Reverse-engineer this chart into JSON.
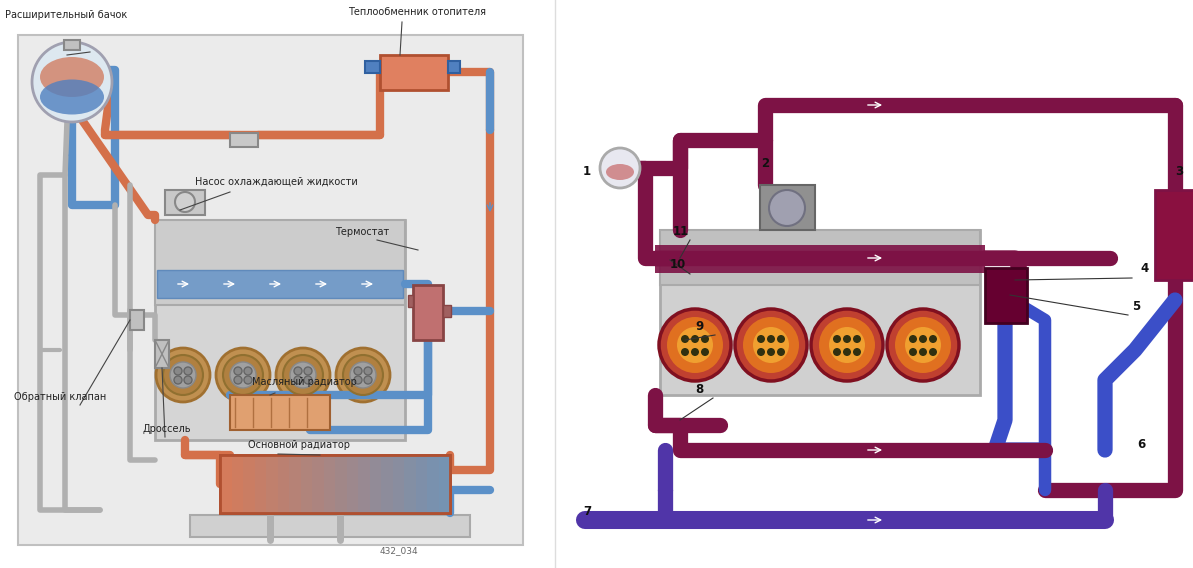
{
  "fig_width": 11.93,
  "fig_height": 5.68,
  "bg_color": "#ffffff",
  "left_labels": {
    "rasshiritelniy": "Расширительный бачок",
    "nasos": "Насос охлаждающей жидкости",
    "termostat": "Термостат",
    "teplo": "Теплообменник отопителя",
    "obratny": "Обратный клапан",
    "drossel": "Дроссель",
    "maslyany": "Масляный радиатор",
    "osnovnoy": "Основной радиатор",
    "code": "432_034"
  },
  "colors": {
    "hot": "#d4704a",
    "cold": "#5b90c8",
    "gray_pipe": "#b0b0b0",
    "gray_dark": "#909090",
    "engine_fill": "#d5d5d5",
    "engine_edge": "#aaaaaa",
    "head_fill": "#cccccc",
    "right_hot": "#7d1245",
    "right_blue": "#3b4fc8",
    "right_purple": "#5035a8",
    "right_blue2": "#4060d0",
    "bg": "#f8f8f8",
    "text": "#222222",
    "lc": "#444444"
  },
  "fonts": {
    "sm": 7.0,
    "md": 8.5,
    "num": 8.5
  }
}
